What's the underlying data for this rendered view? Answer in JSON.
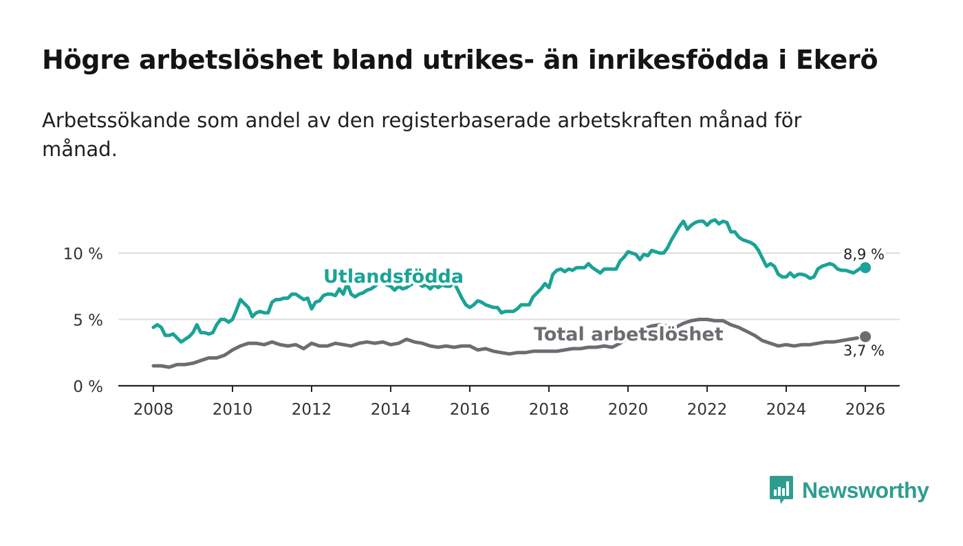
{
  "title": "Högre arbetslöshet bland utrikes- än inrikesfödda i Ekerö",
  "subtitle": "Arbetssökande som andel av den registerbaserade arbetskraften månad för månad.",
  "logo": {
    "text": "Newsworthy",
    "icon": "newsworthy-bar-chart-icon"
  },
  "colors": {
    "foreign": "#1aa396",
    "total": "#6d6c72",
    "grid": "#dddddd",
    "axis": "#222222",
    "brand": "#2e9d90"
  },
  "chart_data": {
    "type": "line",
    "title": "Högre arbetslöshet bland utrikes- än inrikesfödda i Ekerö",
    "xlabel": "",
    "ylabel": "",
    "xlim": [
      2007.55,
      2026.9
    ],
    "ylim": [
      0,
      12.8
    ],
    "y_ticks": [
      {
        "value": 0,
        "label": "0 %"
      },
      {
        "value": 5,
        "label": "5 %"
      },
      {
        "value": 10,
        "label": "10 %"
      }
    ],
    "x_ticks": [
      {
        "value": 2008,
        "label": "2008"
      },
      {
        "value": 2010,
        "label": "2010"
      },
      {
        "value": 2012,
        "label": "2012"
      },
      {
        "value": 2014,
        "label": "2014"
      },
      {
        "value": 2016,
        "label": "2016"
      },
      {
        "value": 2018,
        "label": "2018"
      },
      {
        "value": 2020,
        "label": "2020"
      },
      {
        "value": 2022,
        "label": "2022"
      },
      {
        "value": 2024,
        "label": "2024"
      },
      {
        "value": 2026,
        "label": "2026"
      }
    ],
    "series": [
      {
        "name": "Utlandsfödda",
        "key": "foreign",
        "points": [
          [
            2008.0,
            4.4
          ],
          [
            2008.1,
            4.6
          ],
          [
            2008.2,
            4.4
          ],
          [
            2008.3,
            3.8
          ],
          [
            2008.4,
            3.8
          ],
          [
            2008.5,
            3.9
          ],
          [
            2008.6,
            3.6
          ],
          [
            2008.7,
            3.3
          ],
          [
            2008.8,
            3.5
          ],
          [
            2008.9,
            3.7
          ],
          [
            2009.0,
            4.0
          ],
          [
            2009.1,
            4.6
          ],
          [
            2009.2,
            4.0
          ],
          [
            2009.3,
            4.0
          ],
          [
            2009.4,
            3.9
          ],
          [
            2009.5,
            4.0
          ],
          [
            2009.6,
            4.6
          ],
          [
            2009.7,
            5.0
          ],
          [
            2009.8,
            5.0
          ],
          [
            2009.9,
            4.8
          ],
          [
            2010.0,
            5.0
          ],
          [
            2010.1,
            5.7
          ],
          [
            2010.2,
            6.5
          ],
          [
            2010.3,
            6.2
          ],
          [
            2010.4,
            5.9
          ],
          [
            2010.5,
            5.2
          ],
          [
            2010.6,
            5.5
          ],
          [
            2010.7,
            5.6
          ],
          [
            2010.8,
            5.5
          ],
          [
            2010.9,
            5.5
          ],
          [
            2011.0,
            6.3
          ],
          [
            2011.1,
            6.5
          ],
          [
            2011.2,
            6.5
          ],
          [
            2011.3,
            6.6
          ],
          [
            2011.4,
            6.6
          ],
          [
            2011.5,
            6.9
          ],
          [
            2011.6,
            6.9
          ],
          [
            2011.7,
            6.7
          ],
          [
            2011.8,
            6.5
          ],
          [
            2011.9,
            6.6
          ],
          [
            2012.0,
            5.8
          ],
          [
            2012.1,
            6.3
          ],
          [
            2012.2,
            6.4
          ],
          [
            2012.3,
            6.8
          ],
          [
            2012.4,
            6.9
          ],
          [
            2012.5,
            6.9
          ],
          [
            2012.6,
            6.8
          ],
          [
            2012.7,
            7.3
          ],
          [
            2012.8,
            6.9
          ],
          [
            2012.9,
            7.7
          ],
          [
            2013.0,
            6.9
          ],
          [
            2013.1,
            6.7
          ],
          [
            2013.2,
            6.9
          ],
          [
            2013.3,
            7.0
          ],
          [
            2013.4,
            7.2
          ],
          [
            2013.5,
            7.3
          ],
          [
            2013.6,
            7.5
          ],
          [
            2013.7,
            7.8
          ],
          [
            2013.8,
            7.8
          ],
          [
            2013.9,
            7.6
          ],
          [
            2014.0,
            7.5
          ],
          [
            2014.1,
            7.2
          ],
          [
            2014.2,
            7.5
          ],
          [
            2014.3,
            7.3
          ],
          [
            2014.4,
            7.4
          ],
          [
            2014.5,
            7.6
          ],
          [
            2014.6,
            7.8
          ],
          [
            2014.7,
            7.7
          ],
          [
            2014.8,
            7.5
          ],
          [
            2014.9,
            7.6
          ],
          [
            2015.0,
            7.3
          ],
          [
            2015.1,
            7.6
          ],
          [
            2015.2,
            7.4
          ],
          [
            2015.3,
            7.6
          ],
          [
            2015.4,
            7.5
          ],
          [
            2015.5,
            7.5
          ],
          [
            2015.6,
            7.8
          ],
          [
            2015.7,
            7.2
          ],
          [
            2015.8,
            6.6
          ],
          [
            2015.9,
            6.1
          ],
          [
            2016.0,
            5.9
          ],
          [
            2016.1,
            6.1
          ],
          [
            2016.2,
            6.4
          ],
          [
            2016.3,
            6.3
          ],
          [
            2016.4,
            6.1
          ],
          [
            2016.5,
            6.0
          ],
          [
            2016.6,
            5.9
          ],
          [
            2016.7,
            5.9
          ],
          [
            2016.8,
            5.5
          ],
          [
            2016.9,
            5.6
          ],
          [
            2017.0,
            5.6
          ],
          [
            2017.1,
            5.6
          ],
          [
            2017.2,
            5.8
          ],
          [
            2017.3,
            6.1
          ],
          [
            2017.4,
            6.1
          ],
          [
            2017.5,
            6.1
          ],
          [
            2017.6,
            6.7
          ],
          [
            2017.7,
            7.0
          ],
          [
            2017.8,
            7.3
          ],
          [
            2017.9,
            7.7
          ],
          [
            2018.0,
            7.4
          ],
          [
            2018.1,
            8.4
          ],
          [
            2018.2,
            8.7
          ],
          [
            2018.3,
            8.8
          ],
          [
            2018.4,
            8.6
          ],
          [
            2018.5,
            8.8
          ],
          [
            2018.6,
            8.7
          ],
          [
            2018.7,
            8.9
          ],
          [
            2018.8,
            8.9
          ],
          [
            2018.9,
            8.9
          ],
          [
            2019.0,
            9.2
          ],
          [
            2019.1,
            8.9
          ],
          [
            2019.2,
            8.7
          ],
          [
            2019.3,
            8.5
          ],
          [
            2019.4,
            8.8
          ],
          [
            2019.5,
            8.8
          ],
          [
            2019.6,
            8.8
          ],
          [
            2019.7,
            8.8
          ],
          [
            2019.8,
            9.4
          ],
          [
            2019.9,
            9.7
          ],
          [
            2020.0,
            10.1
          ],
          [
            2020.1,
            10.0
          ],
          [
            2020.2,
            9.9
          ],
          [
            2020.3,
            9.5
          ],
          [
            2020.4,
            9.9
          ],
          [
            2020.5,
            9.8
          ],
          [
            2020.6,
            10.2
          ],
          [
            2020.7,
            10.1
          ],
          [
            2020.8,
            10.0
          ],
          [
            2020.9,
            10.0
          ],
          [
            2021.0,
            10.4
          ],
          [
            2021.1,
            11.0
          ],
          [
            2021.2,
            11.5
          ],
          [
            2021.3,
            12.0
          ],
          [
            2021.4,
            12.4
          ],
          [
            2021.5,
            11.8
          ],
          [
            2021.6,
            12.1
          ],
          [
            2021.7,
            12.3
          ],
          [
            2021.8,
            12.4
          ],
          [
            2021.9,
            12.4
          ],
          [
            2022.0,
            12.1
          ],
          [
            2022.1,
            12.4
          ],
          [
            2022.2,
            12.5
          ],
          [
            2022.3,
            12.2
          ],
          [
            2022.4,
            12.4
          ],
          [
            2022.5,
            12.3
          ],
          [
            2022.6,
            11.6
          ],
          [
            2022.7,
            11.6
          ],
          [
            2022.8,
            11.2
          ],
          [
            2022.9,
            11.0
          ],
          [
            2023.0,
            10.9
          ],
          [
            2023.1,
            10.8
          ],
          [
            2023.2,
            10.6
          ],
          [
            2023.3,
            10.2
          ],
          [
            2023.4,
            9.6
          ],
          [
            2023.5,
            9.0
          ],
          [
            2023.6,
            9.2
          ],
          [
            2023.7,
            9.0
          ],
          [
            2023.8,
            8.4
          ],
          [
            2023.9,
            8.2
          ],
          [
            2024.0,
            8.2
          ],
          [
            2024.1,
            8.5
          ],
          [
            2024.2,
            8.2
          ],
          [
            2024.3,
            8.4
          ],
          [
            2024.4,
            8.4
          ],
          [
            2024.5,
            8.3
          ],
          [
            2024.6,
            8.1
          ],
          [
            2024.7,
            8.2
          ],
          [
            2024.8,
            8.8
          ],
          [
            2024.9,
            9.0
          ],
          [
            2025.0,
            9.1
          ],
          [
            2025.1,
            9.2
          ],
          [
            2025.2,
            9.1
          ],
          [
            2025.3,
            8.8
          ],
          [
            2025.4,
            8.7
          ],
          [
            2025.5,
            8.7
          ],
          [
            2025.6,
            8.6
          ],
          [
            2025.7,
            8.5
          ],
          [
            2025.8,
            8.7
          ],
          [
            2025.9,
            8.9
          ],
          [
            2025.95,
            8.9
          ]
        ],
        "end_label": "8,9 %",
        "end_value": 8.9,
        "annotation": "Utlandsfödda"
      },
      {
        "name": "Total arbetslöshet",
        "key": "total",
        "points": [
          [
            2008.0,
            1.5
          ],
          [
            2008.2,
            1.5
          ],
          [
            2008.4,
            1.4
          ],
          [
            2008.6,
            1.6
          ],
          [
            2008.8,
            1.6
          ],
          [
            2009.0,
            1.7
          ],
          [
            2009.2,
            1.9
          ],
          [
            2009.4,
            2.1
          ],
          [
            2009.6,
            2.1
          ],
          [
            2009.8,
            2.3
          ],
          [
            2010.0,
            2.7
          ],
          [
            2010.2,
            3.0
          ],
          [
            2010.4,
            3.2
          ],
          [
            2010.6,
            3.2
          ],
          [
            2010.8,
            3.1
          ],
          [
            2011.0,
            3.3
          ],
          [
            2011.2,
            3.1
          ],
          [
            2011.4,
            3.0
          ],
          [
            2011.6,
            3.1
          ],
          [
            2011.8,
            2.8
          ],
          [
            2012.0,
            3.2
          ],
          [
            2012.2,
            3.0
          ],
          [
            2012.4,
            3.0
          ],
          [
            2012.6,
            3.2
          ],
          [
            2012.8,
            3.1
          ],
          [
            2013.0,
            3.0
          ],
          [
            2013.2,
            3.2
          ],
          [
            2013.4,
            3.3
          ],
          [
            2013.6,
            3.2
          ],
          [
            2013.8,
            3.3
          ],
          [
            2014.0,
            3.1
          ],
          [
            2014.2,
            3.2
          ],
          [
            2014.4,
            3.5
          ],
          [
            2014.6,
            3.3
          ],
          [
            2014.8,
            3.2
          ],
          [
            2015.0,
            3.0
          ],
          [
            2015.2,
            2.9
          ],
          [
            2015.4,
            3.0
          ],
          [
            2015.6,
            2.9
          ],
          [
            2015.8,
            3.0
          ],
          [
            2016.0,
            3.0
          ],
          [
            2016.2,
            2.7
          ],
          [
            2016.4,
            2.8
          ],
          [
            2016.6,
            2.6
          ],
          [
            2016.8,
            2.5
          ],
          [
            2017.0,
            2.4
          ],
          [
            2017.2,
            2.5
          ],
          [
            2017.4,
            2.5
          ],
          [
            2017.6,
            2.6
          ],
          [
            2017.8,
            2.6
          ],
          [
            2018.0,
            2.6
          ],
          [
            2018.2,
            2.6
          ],
          [
            2018.4,
            2.7
          ],
          [
            2018.6,
            2.8
          ],
          [
            2018.8,
            2.8
          ],
          [
            2019.0,
            2.9
          ],
          [
            2019.2,
            2.9
          ],
          [
            2019.4,
            3.0
          ],
          [
            2019.6,
            2.9
          ],
          [
            2019.8,
            3.2
          ],
          [
            2020.0,
            3.6
          ],
          [
            2020.2,
            4.0
          ],
          [
            2020.4,
            4.3
          ],
          [
            2020.6,
            4.5
          ],
          [
            2020.8,
            4.6
          ],
          [
            2021.0,
            4.5
          ],
          [
            2021.2,
            4.4
          ],
          [
            2021.4,
            4.7
          ],
          [
            2021.6,
            4.9
          ],
          [
            2021.8,
            5.0
          ],
          [
            2022.0,
            5.0
          ],
          [
            2022.2,
            4.9
          ],
          [
            2022.4,
            4.9
          ],
          [
            2022.6,
            4.6
          ],
          [
            2022.8,
            4.4
          ],
          [
            2023.0,
            4.1
          ],
          [
            2023.2,
            3.8
          ],
          [
            2023.4,
            3.4
          ],
          [
            2023.6,
            3.2
          ],
          [
            2023.8,
            3.0
          ],
          [
            2024.0,
            3.1
          ],
          [
            2024.2,
            3.0
          ],
          [
            2024.4,
            3.1
          ],
          [
            2024.6,
            3.1
          ],
          [
            2024.8,
            3.2
          ],
          [
            2025.0,
            3.3
          ],
          [
            2025.2,
            3.3
          ],
          [
            2025.4,
            3.4
          ],
          [
            2025.6,
            3.5
          ],
          [
            2025.8,
            3.6
          ],
          [
            2025.95,
            3.7
          ]
        ],
        "end_label": "3,7 %",
        "end_value": 3.7,
        "annotation": "Total arbetslöshet"
      }
    ]
  }
}
